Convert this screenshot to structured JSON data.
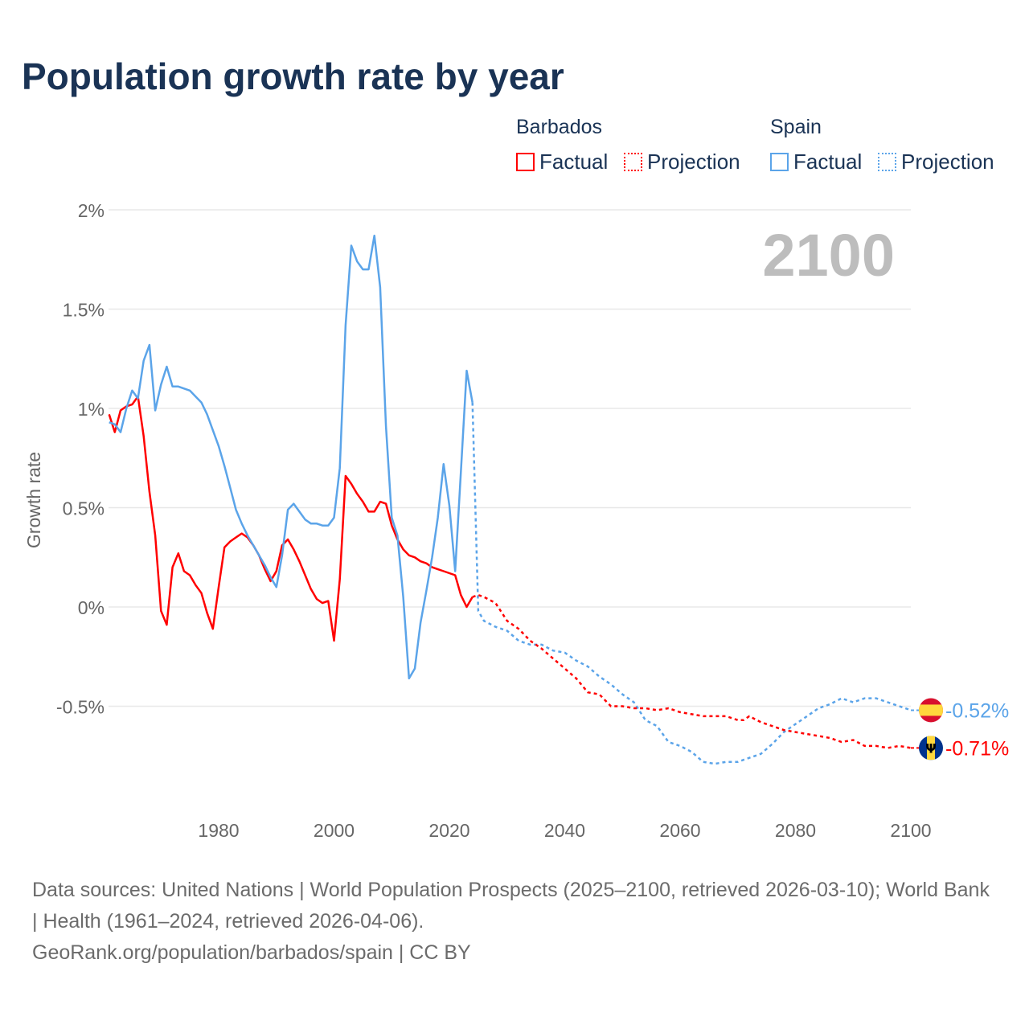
{
  "title": "Population growth rate by year",
  "legend": {
    "countries": [
      {
        "name": "Barbados",
        "color": "#ff0000",
        "factual": "Factual",
        "projection": "Projection"
      },
      {
        "name": "Spain",
        "color": "#5ba4e9",
        "factual": "Factual",
        "projection": "Projection"
      }
    ]
  },
  "footer": {
    "sources": "Data sources: United Nations | World Population Prospects (2025–2100, retrieved 2026-03-10); World Bank | Health (1961–2024, retrieved 2026-04-06).",
    "credit": "GeoRank.org/population/barbados/spain | CC BY"
  },
  "chart_data": {
    "type": "line",
    "title": "Population growth rate by year",
    "ylabel": "Growth rate",
    "xlabel": "",
    "xlim": [
      1961,
      2100
    ],
    "ylim": [
      -0.9,
      2.0
    ],
    "yticks": [
      {
        "v": 2,
        "label": "2%"
      },
      {
        "v": 1.5,
        "label": "1.5%"
      },
      {
        "v": 1,
        "label": "1%"
      },
      {
        "v": 0.5,
        "label": "0.5%"
      },
      {
        "v": 0,
        "label": "0%"
      },
      {
        "v": -0.5,
        "label": "-0.5%"
      }
    ],
    "xticks": [
      {
        "v": 1980,
        "label": "1980"
      },
      {
        "v": 2000,
        "label": "2000"
      },
      {
        "v": 2020,
        "label": "2020"
      },
      {
        "v": 2040,
        "label": "2040"
      },
      {
        "v": 2060,
        "label": "2060"
      },
      {
        "v": 2080,
        "label": "2080"
      },
      {
        "v": 2100,
        "label": "2100"
      }
    ],
    "grid": true,
    "current_year_label": "2100",
    "series": [
      {
        "name": "Barbados",
        "color": "#ff0000",
        "flag": "barbados-flag",
        "end_label": "-0.71%",
        "factual": {
          "x": [
            1961,
            1962,
            1963,
            1964,
            1965,
            1966,
            1967,
            1968,
            1969,
            1970,
            1971,
            1972,
            1973,
            1974,
            1975,
            1976,
            1977,
            1978,
            1979,
            1980,
            1981,
            1982,
            1983,
            1984,
            1985,
            1986,
            1987,
            1988,
            1989,
            1990,
            1991,
            1992,
            1993,
            1994,
            1995,
            1996,
            1997,
            1998,
            1999,
            2000,
            2001,
            2002,
            2003,
            2004,
            2005,
            2006,
            2007,
            2008,
            2009,
            2010,
            2011,
            2012,
            2013,
            2014,
            2015,
            2016,
            2017,
            2018,
            2019,
            2020,
            2021,
            2022,
            2023,
            2024
          ],
          "y": [
            0.97,
            0.88,
            0.99,
            1.01,
            1.02,
            1.06,
            0.86,
            0.58,
            0.36,
            -0.02,
            -0.09,
            0.2,
            0.27,
            0.18,
            0.16,
            0.11,
            0.07,
            -0.03,
            -0.11,
            0.1,
            0.3,
            0.33,
            0.35,
            0.37,
            0.35,
            0.31,
            0.26,
            0.19,
            0.13,
            0.18,
            0.31,
            0.34,
            0.29,
            0.23,
            0.16,
            0.09,
            0.04,
            0.02,
            0.03,
            -0.17,
            0.14,
            0.66,
            0.62,
            0.57,
            0.53,
            0.48,
            0.48,
            0.53,
            0.52,
            0.41,
            0.34,
            0.29,
            0.26,
            0.25,
            0.23,
            0.22,
            0.2,
            0.19,
            0.18,
            0.17,
            0.16,
            0.06,
            0.0,
            0.05
          ]
        },
        "projection": {
          "x": [
            2024,
            2025,
            2026,
            2028,
            2030,
            2032,
            2034,
            2036,
            2038,
            2040,
            2042,
            2044,
            2046,
            2048,
            2050,
            2052,
            2054,
            2056,
            2058,
            2060,
            2062,
            2064,
            2066,
            2068,
            2070,
            2071,
            2072,
            2074,
            2076,
            2078,
            2080,
            2082,
            2084,
            2086,
            2088,
            2090,
            2092,
            2094,
            2096,
            2098,
            2100
          ],
          "y": [
            0.05,
            0.06,
            0.05,
            0.02,
            -0.07,
            -0.11,
            -0.17,
            -0.21,
            -0.26,
            -0.31,
            -0.36,
            -0.43,
            -0.44,
            -0.5,
            -0.5,
            -0.51,
            -0.51,
            -0.52,
            -0.51,
            -0.53,
            -0.54,
            -0.55,
            -0.55,
            -0.55,
            -0.57,
            -0.57,
            -0.55,
            -0.58,
            -0.6,
            -0.62,
            -0.63,
            -0.64,
            -0.65,
            -0.66,
            -0.68,
            -0.67,
            -0.7,
            -0.7,
            -0.71,
            -0.7,
            -0.71
          ]
        }
      },
      {
        "name": "Spain",
        "color": "#5ba4e9",
        "flag": "spain-flag",
        "end_label": "-0.52%",
        "factual": {
          "x": [
            1961,
            1962,
            1963,
            1964,
            1965,
            1966,
            1967,
            1968,
            1969,
            1970,
            1971,
            1972,
            1973,
            1974,
            1975,
            1976,
            1977,
            1978,
            1979,
            1980,
            1981,
            1982,
            1983,
            1984,
            1985,
            1986,
            1987,
            1988,
            1989,
            1990,
            1991,
            1992,
            1993,
            1994,
            1995,
            1996,
            1997,
            1998,
            1999,
            2000,
            2001,
            2002,
            2003,
            2004,
            2005,
            2006,
            2007,
            2008,
            2009,
            2010,
            2011,
            2012,
            2013,
            2014,
            2015,
            2016,
            2017,
            2018,
            2019,
            2020,
            2021,
            2022,
            2023,
            2024
          ],
          "y": [
            0.93,
            0.92,
            0.88,
            1.0,
            1.09,
            1.05,
            1.24,
            1.32,
            0.99,
            1.12,
            1.21,
            1.11,
            1.11,
            1.1,
            1.09,
            1.06,
            1.03,
            0.97,
            0.89,
            0.81,
            0.71,
            0.6,
            0.49,
            0.42,
            0.36,
            0.31,
            0.26,
            0.21,
            0.15,
            0.1,
            0.26,
            0.49,
            0.52,
            0.48,
            0.44,
            0.42,
            0.42,
            0.41,
            0.41,
            0.45,
            0.7,
            1.42,
            1.82,
            1.74,
            1.7,
            1.7,
            1.87,
            1.61,
            0.91,
            0.45,
            0.36,
            0.05,
            -0.36,
            -0.31,
            -0.08,
            0.08,
            0.25,
            0.45,
            0.72,
            0.51,
            0.18,
            0.68,
            1.19,
            1.03
          ]
        },
        "projection": {
          "x": [
            2024,
            2025,
            2026,
            2028,
            2030,
            2032,
            2034,
            2036,
            2038,
            2040,
            2042,
            2044,
            2046,
            2048,
            2050,
            2052,
            2054,
            2056,
            2058,
            2060,
            2062,
            2064,
            2066,
            2068,
            2070,
            2072,
            2074,
            2076,
            2078,
            2080,
            2082,
            2084,
            2086,
            2088,
            2090,
            2092,
            2094,
            2096,
            2098,
            2100
          ],
          "y": [
            1.03,
            -0.02,
            -0.07,
            -0.1,
            -0.12,
            -0.17,
            -0.19,
            -0.19,
            -0.22,
            -0.23,
            -0.27,
            -0.3,
            -0.35,
            -0.39,
            -0.44,
            -0.48,
            -0.57,
            -0.6,
            -0.68,
            -0.7,
            -0.73,
            -0.78,
            -0.79,
            -0.78,
            -0.78,
            -0.76,
            -0.74,
            -0.69,
            -0.63,
            -0.59,
            -0.55,
            -0.51,
            -0.49,
            -0.46,
            -0.48,
            -0.46,
            -0.46,
            -0.48,
            -0.5,
            -0.52
          ]
        }
      }
    ]
  }
}
